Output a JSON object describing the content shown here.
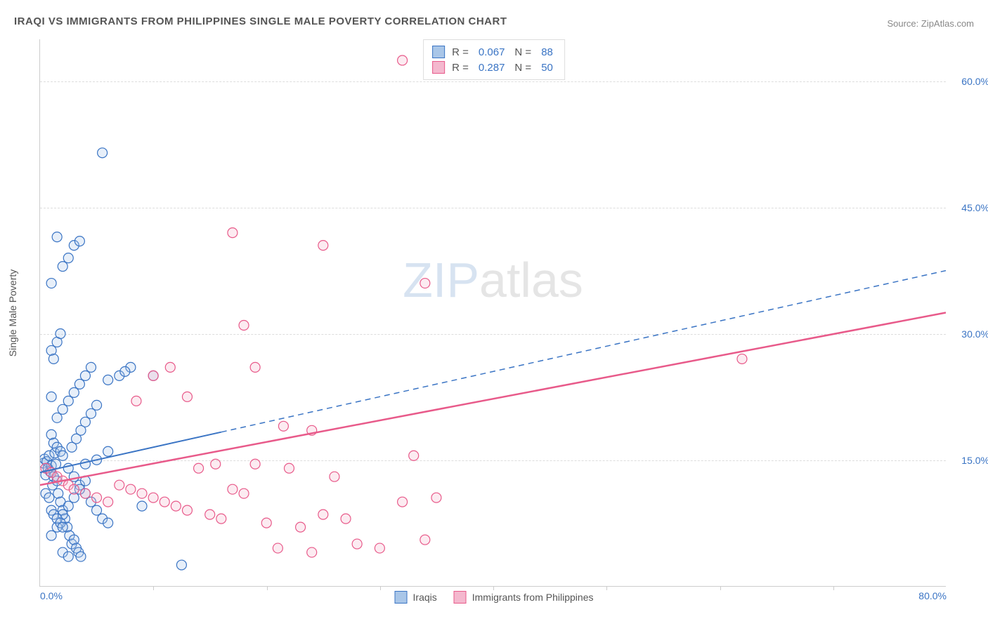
{
  "title": "IRAQI VS IMMIGRANTS FROM PHILIPPINES SINGLE MALE POVERTY CORRELATION CHART",
  "source": "Source: ZipAtlas.com",
  "ylabel": "Single Male Poverty",
  "watermark": {
    "zip": "ZIP",
    "atlas": "atlas"
  },
  "chart": {
    "type": "scatter",
    "background_color": "#ffffff",
    "grid_color": "#dddddd",
    "axis_color": "#cccccc",
    "tick_color": "#3a74c4",
    "label_color": "#555555",
    "xlim": [
      0,
      80
    ],
    "ylim": [
      0,
      65
    ],
    "yticks": [
      15,
      30,
      45,
      60
    ],
    "ytick_labels": [
      "15.0%",
      "30.0%",
      "45.0%",
      "60.0%"
    ],
    "xticks": [
      0,
      80
    ],
    "xtick_labels": [
      "0.0%",
      "80.0%"
    ],
    "xtick_marks": [
      10,
      20,
      30,
      40,
      50,
      60,
      70
    ],
    "marker_radius": 7,
    "marker_stroke_width": 1.2,
    "marker_fill_opacity": 0.28,
    "series": [
      {
        "name": "Iraqis",
        "color_stroke": "#3a74c4",
        "color_fill": "#a9c6e8",
        "R": "0.067",
        "N": "88",
        "trend": {
          "type": "dashed_after",
          "solid_until_x": 16,
          "x1": 0,
          "y1": 13.5,
          "x2": 80,
          "y2": 37.5,
          "stroke_width": 2,
          "dash": "8,6"
        },
        "points": [
          [
            0.3,
            14.6
          ],
          [
            0.4,
            15.1
          ],
          [
            0.5,
            13.2
          ],
          [
            0.6,
            14.8
          ],
          [
            0.7,
            14.0
          ],
          [
            0.8,
            15.5
          ],
          [
            0.9,
            13.6
          ],
          [
            1.0,
            14.3
          ],
          [
            1.1,
            12.0
          ],
          [
            1.2,
            13.0
          ],
          [
            1.3,
            15.8
          ],
          [
            1.4,
            14.5
          ],
          [
            1.5,
            12.5
          ],
          [
            1.6,
            11.0
          ],
          [
            1.8,
            10.0
          ],
          [
            2.0,
            9.0
          ],
          [
            2.2,
            8.0
          ],
          [
            2.4,
            7.0
          ],
          [
            2.6,
            6.0
          ],
          [
            2.8,
            5.0
          ],
          [
            3.0,
            5.5
          ],
          [
            3.2,
            4.5
          ],
          [
            3.4,
            4.0
          ],
          [
            3.6,
            3.5
          ],
          [
            1.0,
            18.0
          ],
          [
            1.2,
            17.0
          ],
          [
            1.5,
            16.5
          ],
          [
            1.8,
            16.0
          ],
          [
            2.0,
            15.5
          ],
          [
            2.5,
            14.0
          ],
          [
            3.0,
            13.0
          ],
          [
            3.5,
            12.0
          ],
          [
            4.0,
            11.0
          ],
          [
            4.5,
            10.0
          ],
          [
            5.0,
            9.0
          ],
          [
            5.5,
            8.0
          ],
          [
            6.0,
            7.5
          ],
          [
            1.5,
            20.0
          ],
          [
            2.0,
            21.0
          ],
          [
            2.5,
            22.0
          ],
          [
            3.0,
            23.0
          ],
          [
            3.5,
            24.0
          ],
          [
            4.0,
            25.0
          ],
          [
            4.5,
            26.0
          ],
          [
            1.0,
            28.0
          ],
          [
            1.2,
            27.0
          ],
          [
            1.5,
            29.0
          ],
          [
            1.8,
            30.0
          ],
          [
            1.0,
            36.0
          ],
          [
            2.0,
            38.0
          ],
          [
            2.5,
            39.0
          ],
          [
            3.0,
            40.5
          ],
          [
            3.5,
            41.0
          ],
          [
            1.5,
            41.5
          ],
          [
            5.5,
            51.5
          ],
          [
            4.0,
            14.5
          ],
          [
            5.0,
            15.0
          ],
          [
            6.0,
            16.0
          ],
          [
            7.0,
            25.0
          ],
          [
            8.0,
            26.0
          ],
          [
            9.0,
            9.5
          ],
          [
            10.0,
            25.0
          ],
          [
            1.0,
            6.0
          ],
          [
            1.5,
            7.0
          ],
          [
            2.0,
            8.5
          ],
          [
            2.5,
            9.5
          ],
          [
            3.0,
            10.5
          ],
          [
            3.5,
            11.5
          ],
          [
            4.0,
            12.5
          ],
          [
            0.5,
            11.0
          ],
          [
            0.8,
            10.5
          ],
          [
            1.0,
            9.0
          ],
          [
            1.2,
            8.5
          ],
          [
            1.5,
            8.0
          ],
          [
            1.8,
            7.5
          ],
          [
            2.0,
            7.0
          ],
          [
            6.0,
            24.5
          ],
          [
            7.5,
            25.5
          ],
          [
            4.5,
            20.5
          ],
          [
            5.0,
            21.5
          ],
          [
            2.0,
            4.0
          ],
          [
            2.5,
            3.5
          ],
          [
            12.5,
            2.5
          ],
          [
            2.8,
            16.5
          ],
          [
            3.2,
            17.5
          ],
          [
            3.6,
            18.5
          ],
          [
            4.0,
            19.5
          ],
          [
            1.0,
            22.5
          ]
        ]
      },
      {
        "name": "Immigrants from Philippines",
        "color_stroke": "#e85a8a",
        "color_fill": "#f4b8ce",
        "R": "0.287",
        "N": "50",
        "trend": {
          "type": "solid",
          "x1": 0,
          "y1": 12.0,
          "x2": 80,
          "y2": 32.5,
          "stroke_width": 2.5
        },
        "points": [
          [
            0.5,
            14.0
          ],
          [
            1.0,
            13.5
          ],
          [
            1.5,
            13.0
          ],
          [
            2.0,
            12.5
          ],
          [
            2.5,
            12.0
          ],
          [
            3.0,
            11.5
          ],
          [
            4.0,
            11.0
          ],
          [
            5.0,
            10.5
          ],
          [
            6.0,
            10.0
          ],
          [
            7.0,
            12.0
          ],
          [
            8.0,
            11.5
          ],
          [
            9.0,
            11.0
          ],
          [
            10.0,
            10.5
          ],
          [
            11.0,
            10.0
          ],
          [
            12.0,
            9.5
          ],
          [
            13.0,
            9.0
          ],
          [
            14.0,
            14.0
          ],
          [
            15.0,
            8.5
          ],
          [
            16.0,
            8.0
          ],
          [
            17.0,
            11.5
          ],
          [
            18.0,
            11.0
          ],
          [
            19.0,
            14.5
          ],
          [
            20.0,
            7.5
          ],
          [
            21.0,
            4.5
          ],
          [
            22.0,
            14.0
          ],
          [
            23.0,
            7.0
          ],
          [
            24.0,
            4.0
          ],
          [
            25.0,
            8.5
          ],
          [
            26.0,
            13.0
          ],
          [
            27.0,
            8.0
          ],
          [
            28.0,
            5.0
          ],
          [
            30.0,
            4.5
          ],
          [
            32.0,
            10.0
          ],
          [
            34.0,
            5.5
          ],
          [
            8.5,
            22.0
          ],
          [
            10.0,
            25.0
          ],
          [
            11.5,
            26.0
          ],
          [
            13.0,
            22.5
          ],
          [
            18.0,
            31.0
          ],
          [
            19.0,
            26.0
          ],
          [
            21.5,
            19.0
          ],
          [
            17.0,
            42.0
          ],
          [
            25.0,
            40.5
          ],
          [
            32.0,
            62.5
          ],
          [
            33.0,
            15.5
          ],
          [
            34.0,
            36.0
          ],
          [
            35.0,
            10.5
          ],
          [
            62.0,
            27.0
          ],
          [
            15.5,
            14.5
          ],
          [
            24.0,
            18.5
          ]
        ]
      }
    ]
  },
  "legend_bottom": [
    {
      "label": "Iraqis",
      "swatch_fill": "#a9c6e8",
      "swatch_stroke": "#3a74c4"
    },
    {
      "label": "Immigrants from Philippines",
      "swatch_fill": "#f4b8ce",
      "swatch_stroke": "#e85a8a"
    }
  ]
}
